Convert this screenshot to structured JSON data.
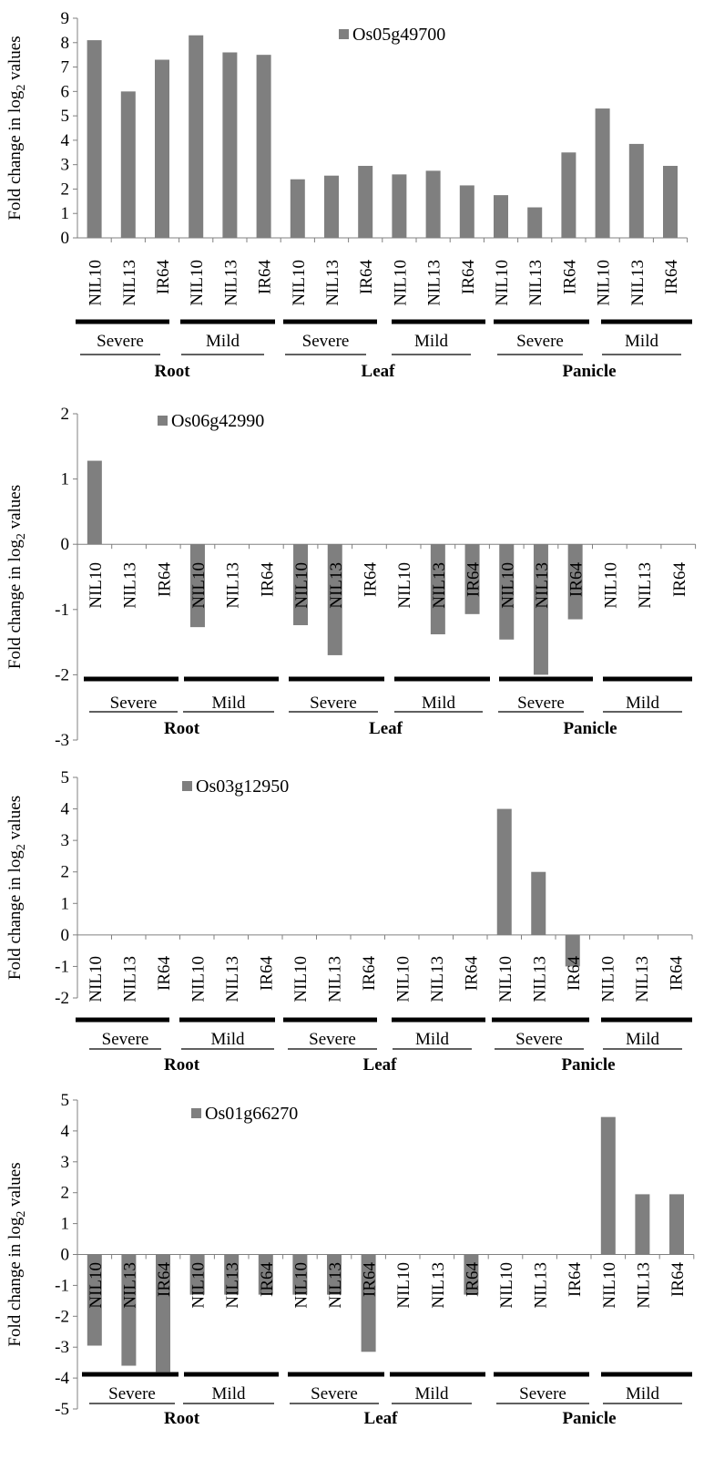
{
  "chart_data": [
    {
      "type": "bar",
      "legend": "Os05g49700",
      "ylabel": "Fold change in log",
      "ylabel_sub": "2",
      "ylabel_suffix": " values",
      "ylim": [
        0,
        9
      ],
      "yticks": [
        "0",
        "1",
        "2",
        "3",
        "4",
        "5",
        "6",
        "7",
        "8",
        "9"
      ],
      "categories": [
        "NIL10",
        "NIL13",
        "IR64",
        "NIL10",
        "NIL13",
        "IR64",
        "NIL10",
        "NIL13",
        "IR64",
        "NIL10",
        "NIL13",
        "IR64",
        "NIL10",
        "NIL13",
        "IR64",
        "NIL10",
        "NIL13",
        "IR64"
      ],
      "values": [
        8.1,
        6.0,
        7.3,
        8.3,
        7.6,
        7.5,
        2.4,
        2.55,
        2.95,
        2.6,
        2.75,
        2.15,
        1.75,
        1.25,
        3.5,
        5.3,
        3.85,
        2.95
      ],
      "conditions": [
        "Severe",
        "Mild",
        "Severe",
        "Mild",
        "Severe",
        "Mild"
      ],
      "tissues": [
        "Root",
        "Leaf",
        "Panicle"
      ],
      "color": "#7f7f7f"
    },
    {
      "type": "bar",
      "legend": "Os06g42990",
      "ylabel": "Fold change in log",
      "ylabel_sub": "2",
      "ylabel_suffix": " values",
      "ylim": [
        -3,
        2
      ],
      "yticks": [
        "2",
        "1",
        "0",
        "-1",
        "-2",
        "-3"
      ],
      "categories": [
        "NIL10",
        "NIL13",
        "IR64",
        "NIL10",
        "NIL13",
        "IR64",
        "NIL10",
        "NIL13",
        "IR64",
        "NIL10",
        "NIL13",
        "IR64",
        "NIL10",
        "NIL13",
        "IR64",
        "NIL10",
        "NIL13",
        "IR64"
      ],
      "values": [
        1.28,
        0,
        0,
        -1.27,
        0,
        0,
        -1.24,
        -1.7,
        0,
        0,
        -1.38,
        -1.07,
        -1.46,
        -2.0,
        -1.15,
        0,
        0,
        0
      ],
      "conditions": [
        "Severe",
        "Mild",
        "Severe",
        "Mild",
        "Severe",
        "Mild"
      ],
      "tissues": [
        "Root",
        "Leaf",
        "Panicle"
      ],
      "color": "#7f7f7f"
    },
    {
      "type": "bar",
      "legend": "Os03g12950",
      "ylabel": "Fold change in log",
      "ylabel_sub": "2",
      "ylabel_suffix": " values",
      "ylim": [
        -2,
        5
      ],
      "yticks": [
        "5",
        "4",
        "3",
        "2",
        "1",
        "0",
        "-1",
        "-2"
      ],
      "categories": [
        "NIL10",
        "NIL13",
        "IR64",
        "NIL10",
        "NIL13",
        "IR64",
        "NIL10",
        "NIL13",
        "IR64",
        "NIL10",
        "NIL13",
        "IR64",
        "NIL10",
        "NIL13",
        "IR64",
        "NIL10",
        "NIL13",
        "IR64"
      ],
      "values": [
        0,
        0,
        0,
        0,
        0,
        0,
        0,
        0,
        0,
        0,
        0,
        0,
        4.0,
        2.0,
        -1.0,
        0,
        0,
        0
      ],
      "conditions": [
        "Severe",
        "Mild",
        "Severe",
        "Mild",
        "Severe",
        "Mild"
      ],
      "tissues": [
        "Root",
        "Leaf",
        "Panicle"
      ],
      "color": "#7f7f7f"
    },
    {
      "type": "bar",
      "legend": "Os01g66270",
      "ylabel": "Fold change in log",
      "ylabel_sub": "2",
      "ylabel_suffix": " values",
      "ylim": [
        -5,
        5
      ],
      "yticks": [
        "5",
        "4",
        "3",
        "2",
        "1",
        "0",
        "-1",
        "-2",
        "-3",
        "-4",
        "-5"
      ],
      "categories": [
        "NIL10",
        "NIL13",
        "IR64",
        "NIL10",
        "NIL13",
        "IR64",
        "NIL10",
        "NIL13",
        "IR64",
        "NIL10",
        "NIL13",
        "IR64",
        "NIL10",
        "NIL13",
        "IR64",
        "NIL10",
        "NIL13",
        "IR64"
      ],
      "values": [
        -2.95,
        -3.6,
        -3.8,
        -1.3,
        -1.3,
        -1.3,
        -1.3,
        -1.3,
        -3.15,
        0,
        0,
        -1.3,
        0,
        0,
        0,
        4.45,
        1.95,
        1.95
      ],
      "conditions": [
        "Severe",
        "Mild",
        "Severe",
        "Mild",
        "Severe",
        "Mild"
      ],
      "tissues": [
        "Root",
        "Leaf",
        "Panicle"
      ],
      "color": "#7f7f7f"
    }
  ]
}
